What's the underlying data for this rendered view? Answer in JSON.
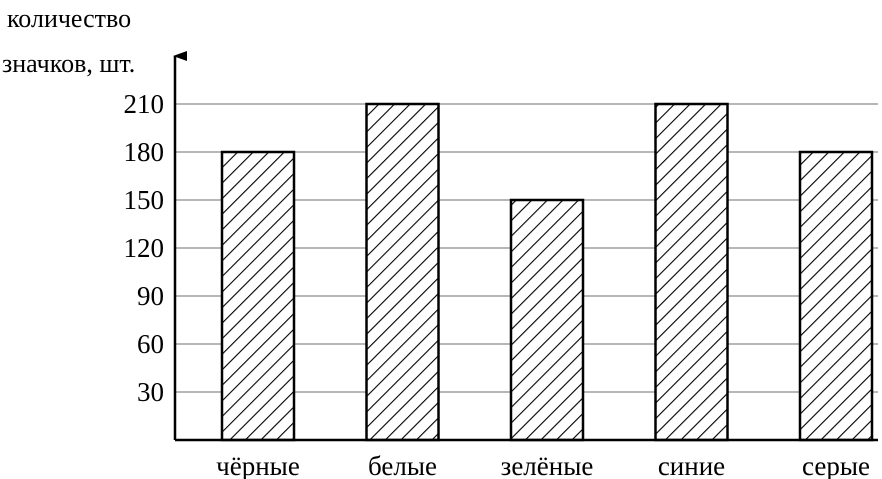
{
  "chart_data": {
    "type": "bar",
    "title": "",
    "xlabel": "",
    "ylabel_lines": [
      "количество",
      "значков, шт."
    ],
    "categories": [
      "чёрные",
      "белые",
      "зелёные",
      "синие",
      "серые"
    ],
    "values": [
      180,
      210,
      150,
      210,
      180
    ],
    "yticks": [
      30,
      60,
      90,
      120,
      150,
      180,
      210
    ],
    "ylim": [
      0,
      210
    ],
    "grid": true,
    "bar_fill": "diagonal-hatch",
    "colors": {
      "bar_stroke": "#000000",
      "bar_fill": "#ffffff",
      "hatch": "#000000",
      "grid": "#8c8c8c",
      "axis": "#000000"
    }
  }
}
